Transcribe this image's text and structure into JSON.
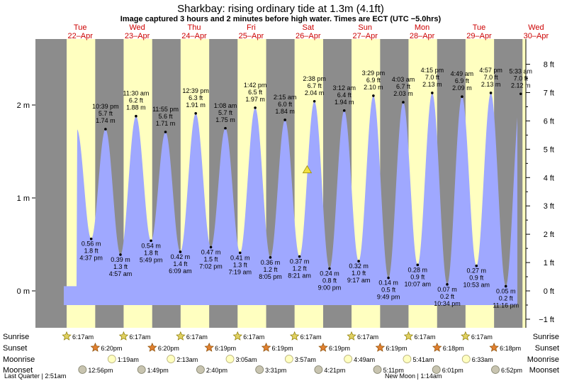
{
  "chart_data": {
    "type": "area",
    "title": "Sharkbay: rising  ordinary tide at 1.3m (4.1ft)",
    "subtitle": "Image captured 3 hours and 2 minutes before high water. Times are ECT (UTC −5.0hrs)",
    "xlabel": "",
    "ylabel": "",
    "y_left_ticks": [
      {
        "v": 0,
        "label": "0 m"
      },
      {
        "v": 1,
        "label": "1 m"
      },
      {
        "v": 2,
        "label": "2 m"
      }
    ],
    "y_right_ticks": [
      {
        "ft": -1,
        "label": "−1 ft"
      },
      {
        "ft": 0,
        "label": "0 ft"
      },
      {
        "ft": 1,
        "label": "1 ft"
      },
      {
        "ft": 2,
        "label": "2 ft"
      },
      {
        "ft": 3,
        "label": "3 ft"
      },
      {
        "ft": 4,
        "label": "4 ft"
      },
      {
        "ft": 5,
        "label": "5 ft"
      },
      {
        "ft": 6,
        "label": "6 ft"
      },
      {
        "ft": 7,
        "label": "7 ft"
      },
      {
        "ft": 8,
        "label": "8 ft"
      }
    ],
    "ylim_m": [
      -0.45,
      2.65
    ],
    "x_start_day": 22.0,
    "x_end_day": 30.75,
    "day_labels": [
      {
        "day": 22,
        "dow": "Tue",
        "date": "22–Apr"
      },
      {
        "day": 23,
        "dow": "Wed",
        "date": "23–Apr"
      },
      {
        "day": 24,
        "dow": "Thu",
        "date": "24–Apr"
      },
      {
        "day": 25,
        "dow": "Fri",
        "date": "25–Apr"
      },
      {
        "day": 26,
        "dow": "Sat",
        "date": "26–Apr"
      },
      {
        "day": 27,
        "dow": "Sun",
        "date": "27–Apr"
      },
      {
        "day": 28,
        "dow": "Mon",
        "date": "28–Apr"
      },
      {
        "day": 29,
        "dow": "Tue",
        "date": "29–Apr"
      },
      {
        "day": 30,
        "dow": "Wed",
        "date": "30–Apr"
      }
    ],
    "sunrise_hours": 6.283,
    "sunset_hours": 18.317,
    "tides": [
      {
        "day": 22,
        "time": "4:37 pm",
        "t": 16.617,
        "m": 0.56,
        "ft": "1.8 ft",
        "type": "low"
      },
      {
        "day": 22,
        "time": "10:39 pm",
        "t": 22.65,
        "m": 1.74,
        "ft": "5.7 ft",
        "type": "high"
      },
      {
        "day": 23,
        "time": "4:57 am",
        "t": 4.95,
        "m": 0.39,
        "ft": "1.3 ft",
        "type": "low"
      },
      {
        "day": 23,
        "time": "11:30 am",
        "t": 11.5,
        "m": 1.88,
        "ft": "6.2 ft",
        "type": "high"
      },
      {
        "day": 23,
        "time": "5:49 pm",
        "t": 17.817,
        "m": 0.54,
        "ft": "1.8 ft",
        "type": "low"
      },
      {
        "day": 23,
        "time": "11:55 pm",
        "t": 23.917,
        "m": 1.71,
        "ft": "5.6 ft",
        "type": "high"
      },
      {
        "day": 24,
        "time": "6:09 am",
        "t": 6.15,
        "m": 0.42,
        "ft": "1.4 ft",
        "type": "low"
      },
      {
        "day": 24,
        "time": "12:39 pm",
        "t": 12.65,
        "m": 1.91,
        "ft": "6.3 ft",
        "type": "high"
      },
      {
        "day": 24,
        "time": "7:02 pm",
        "t": 19.033,
        "m": 0.47,
        "ft": "1.5 ft",
        "type": "low"
      },
      {
        "day": 25,
        "time": "1:08 am",
        "t": 1.133,
        "m": 1.75,
        "ft": "5.7 ft",
        "type": "high"
      },
      {
        "day": 25,
        "time": "7:19 am",
        "t": 7.317,
        "m": 0.41,
        "ft": "1.3 ft",
        "type": "low"
      },
      {
        "day": 25,
        "time": "1:42 pm",
        "t": 13.7,
        "m": 1.97,
        "ft": "6.5 ft",
        "type": "high"
      },
      {
        "day": 25,
        "time": "8:05 pm",
        "t": 20.083,
        "m": 0.36,
        "ft": "1.2 ft",
        "type": "low"
      },
      {
        "day": 26,
        "time": "2:15 am",
        "t": 2.25,
        "m": 1.84,
        "ft": "6.0 ft",
        "type": "high"
      },
      {
        "day": 26,
        "time": "8:21 am",
        "t": 8.35,
        "m": 0.37,
        "ft": "1.2 ft",
        "type": "low"
      },
      {
        "day": 26,
        "time": "2:38 pm",
        "t": 14.633,
        "m": 2.04,
        "ft": "6.7 ft",
        "type": "high"
      },
      {
        "day": 26,
        "time": "9:00 pm",
        "t": 21.0,
        "m": 0.24,
        "ft": "0.8 ft",
        "type": "low"
      },
      {
        "day": 27,
        "time": "3:12 am",
        "t": 3.2,
        "m": 1.94,
        "ft": "6.4 ft",
        "type": "high"
      },
      {
        "day": 27,
        "time": "9:17 am",
        "t": 9.283,
        "m": 0.32,
        "ft": "1.0 ft",
        "type": "low"
      },
      {
        "day": 27,
        "time": "3:29 pm",
        "t": 15.483,
        "m": 2.1,
        "ft": "6.9 ft",
        "type": "high"
      },
      {
        "day": 27,
        "time": "9:49 pm",
        "t": 21.817,
        "m": 0.14,
        "ft": "0.5 ft",
        "type": "low"
      },
      {
        "day": 28,
        "time": "4:03 am",
        "t": 4.05,
        "m": 2.03,
        "ft": "6.7 ft",
        "type": "high"
      },
      {
        "day": 28,
        "time": "10:07 am",
        "t": 10.117,
        "m": 0.28,
        "ft": "0.9 ft",
        "type": "low"
      },
      {
        "day": 28,
        "time": "4:15 pm",
        "t": 16.25,
        "m": 2.13,
        "ft": "7.0 ft",
        "type": "high"
      },
      {
        "day": 28,
        "time": "10:34 pm",
        "t": 22.567,
        "m": 0.07,
        "ft": "0.2 ft",
        "type": "low"
      },
      {
        "day": 29,
        "time": "4:49 am",
        "t": 4.817,
        "m": 2.09,
        "ft": "6.9 ft",
        "type": "high"
      },
      {
        "day": 29,
        "time": "10:53 am",
        "t": 10.883,
        "m": 0.27,
        "ft": "0.9 ft",
        "type": "low"
      },
      {
        "day": 29,
        "time": "4:57 pm",
        "t": 16.95,
        "m": 2.13,
        "ft": "7.0 ft",
        "type": "high"
      },
      {
        "day": 29,
        "time": "11:16 pm",
        "t": 23.267,
        "m": 0.05,
        "ft": "0.2 ft",
        "type": "low"
      },
      {
        "day": 30,
        "time": "5:33 am",
        "t": 5.55,
        "m": 2.12,
        "ft": "7.0 ft",
        "type": "high"
      }
    ],
    "current": {
      "day": 26,
      "t": 11.6,
      "m": 1.3
    },
    "colors": {
      "day": "#ffffc0",
      "night": "#8c8c8c",
      "water": "#9fa8ff",
      "day_label": "#cc0000",
      "marker": "#f0e040"
    }
  },
  "almanac": {
    "row_labels": [
      "Sunrise",
      "Sunset",
      "Moonrise",
      "Moonset"
    ],
    "sunrise": [
      {
        "day": 22,
        "time": "6:17am"
      },
      {
        "day": 23,
        "time": "6:17am"
      },
      {
        "day": 24,
        "time": "6:17am"
      },
      {
        "day": 25,
        "time": "6:17am"
      },
      {
        "day": 26,
        "time": "6:17am"
      },
      {
        "day": 27,
        "time": "6:17am"
      },
      {
        "day": 28,
        "time": "6:17am"
      },
      {
        "day": 29,
        "time": "6:17am"
      }
    ],
    "sunset": [
      {
        "day": 22,
        "time": "6:20pm"
      },
      {
        "day": 23,
        "time": "6:20pm"
      },
      {
        "day": 24,
        "time": "6:19pm"
      },
      {
        "day": 25,
        "time": "6:19pm"
      },
      {
        "day": 26,
        "time": "6:19pm"
      },
      {
        "day": 27,
        "time": "6:19pm"
      },
      {
        "day": 28,
        "time": "6:18pm"
      },
      {
        "day": 29,
        "time": "6:18pm"
      }
    ],
    "moonrise": [
      {
        "day": 23,
        "time": "1:19am"
      },
      {
        "day": 24,
        "time": "2:13am"
      },
      {
        "day": 25,
        "time": "3:05am"
      },
      {
        "day": 26,
        "time": "3:57am"
      },
      {
        "day": 27,
        "time": "4:49am"
      },
      {
        "day": 28,
        "time": "5:41am"
      },
      {
        "day": 29,
        "time": "6:33am"
      }
    ],
    "moonset": [
      {
        "day": 22,
        "time": "12:56pm"
      },
      {
        "day": 23,
        "time": "1:49pm"
      },
      {
        "day": 24,
        "time": "2:40pm"
      },
      {
        "day": 25,
        "time": "3:31pm"
      },
      {
        "day": 26,
        "time": "4:21pm"
      },
      {
        "day": 27,
        "time": "5:11pm"
      },
      {
        "day": 28,
        "time": "6:01pm"
      },
      {
        "day": 29,
        "time": "6:52pm"
      }
    ],
    "moon_phase_notes": [
      {
        "label": "Last Quarter | 2:51am",
        "anchor": "left"
      },
      {
        "label": "New Moon | 1:14am",
        "anchor": "mid"
      }
    ]
  }
}
